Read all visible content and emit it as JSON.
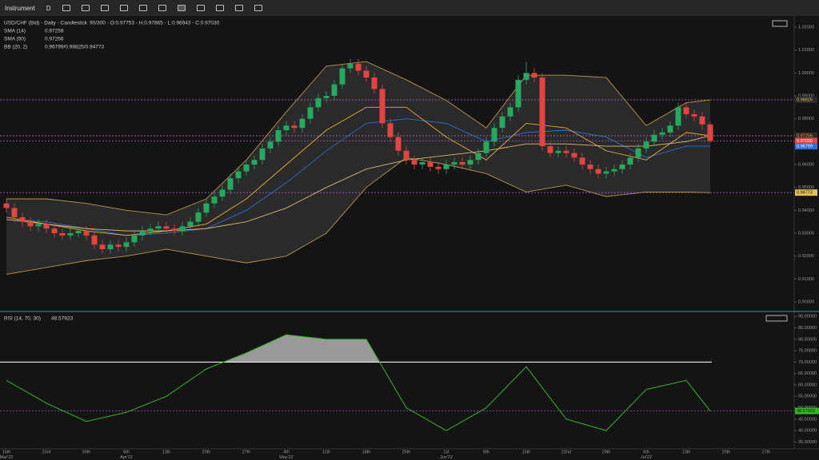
{
  "toolbar": {
    "instrument": "Instrument",
    "period": "D"
  },
  "price_chart": {
    "type": "candlestick",
    "title": "USD/CHF (Bid) - Daily - Candlestick",
    "ohlc_summary": "90/300 - O:0.97753 - H:0.97865 - L:0.96943 - C:0.97030",
    "indicators": [
      {
        "name": "SMA (14)",
        "value": 0.97258
      },
      {
        "name": "SMA (50)",
        "value": 0.97256
      },
      {
        "name": "BB (20, 2)",
        "value": "0.96799/0.98825/0.94773"
      }
    ],
    "ylim": [
      0.8958,
      1.0249
    ],
    "yticks": [
      {
        "value": 0.9,
        "label": "0.90000"
      },
      {
        "value": 0.91,
        "label": "0.91000"
      },
      {
        "value": 0.92,
        "label": "0.92000"
      },
      {
        "value": 0.93,
        "label": "0.93000"
      },
      {
        "value": 0.94,
        "label": "0.94000"
      },
      {
        "value": 0.95,
        "label": "0.95000"
      },
      {
        "value": 0.96,
        "label": "0.96000"
      },
      {
        "value": 0.97,
        "label": "0.97000"
      },
      {
        "value": 0.98,
        "label": "0.98000"
      },
      {
        "value": 0.99,
        "label": "0.99000"
      },
      {
        "value": 1.0,
        "label": "1.00000"
      },
      {
        "value": 1.01,
        "label": "1.01000"
      },
      {
        "value": 1.02,
        "label": "1.02000"
      }
    ],
    "up_color": "#27a85f",
    "down_color": "#e0453f",
    "candles": [
      [
        0.943,
        0.945,
        0.939,
        0.941
      ],
      [
        0.941,
        0.943,
        0.935,
        0.937
      ],
      [
        0.937,
        0.939,
        0.933,
        0.935
      ],
      [
        0.935,
        0.937,
        0.931,
        0.933
      ],
      [
        0.933,
        0.936,
        0.931,
        0.934
      ],
      [
        0.934,
        0.936,
        0.93,
        0.932
      ],
      [
        0.932,
        0.934,
        0.928,
        0.93
      ],
      [
        0.93,
        0.932,
        0.927,
        0.929
      ],
      [
        0.929,
        0.932,
        0.927,
        0.93
      ],
      [
        0.93,
        0.933,
        0.928,
        0.931
      ],
      [
        0.931,
        0.933,
        0.927,
        0.929
      ],
      [
        0.929,
        0.931,
        0.923,
        0.925
      ],
      [
        0.925,
        0.927,
        0.921,
        0.923
      ],
      [
        0.923,
        0.927,
        0.921,
        0.925
      ],
      [
        0.925,
        0.927,
        0.922,
        0.924
      ],
      [
        0.924,
        0.928,
        0.922,
        0.926
      ],
      [
        0.926,
        0.931,
        0.924,
        0.929
      ],
      [
        0.929,
        0.933,
        0.927,
        0.931
      ],
      [
        0.931,
        0.934,
        0.929,
        0.932
      ],
      [
        0.932,
        0.935,
        0.93,
        0.933
      ],
      [
        0.933,
        0.935,
        0.93,
        0.932
      ],
      [
        0.932,
        0.934,
        0.929,
        0.931
      ],
      [
        0.931,
        0.935,
        0.929,
        0.933
      ],
      [
        0.933,
        0.937,
        0.931,
        0.935
      ],
      [
        0.935,
        0.941,
        0.933,
        0.939
      ],
      [
        0.939,
        0.945,
        0.937,
        0.943
      ],
      [
        0.943,
        0.948,
        0.941,
        0.946
      ],
      [
        0.946,
        0.951,
        0.944,
        0.949
      ],
      [
        0.949,
        0.956,
        0.947,
        0.954
      ],
      [
        0.954,
        0.959,
        0.952,
        0.957
      ],
      [
        0.957,
        0.962,
        0.955,
        0.96
      ],
      [
        0.96,
        0.964,
        0.958,
        0.962
      ],
      [
        0.962,
        0.969,
        0.96,
        0.967
      ],
      [
        0.967,
        0.972,
        0.965,
        0.97
      ],
      [
        0.97,
        0.977,
        0.968,
        0.975
      ],
      [
        0.975,
        0.979,
        0.973,
        0.977
      ],
      [
        0.977,
        0.979,
        0.974,
        0.976
      ],
      [
        0.976,
        0.982,
        0.974,
        0.98
      ],
      [
        0.98,
        0.987,
        0.978,
        0.985
      ],
      [
        0.985,
        0.991,
        0.983,
        0.989
      ],
      [
        0.989,
        0.992,
        0.987,
        0.99
      ],
      [
        0.99,
        0.997,
        0.988,
        0.995
      ],
      [
        0.995,
        1.004,
        0.993,
        1.002
      ],
      [
        1.002,
        1.006,
        1.0,
        1.004
      ],
      [
        1.004,
        1.006,
        0.999,
        1.001
      ],
      [
        1.001,
        1.003,
        0.996,
        0.998
      ],
      [
        0.998,
        1.0,
        0.991,
        0.993
      ],
      [
        0.993,
        0.995,
        0.976,
        0.978
      ],
      [
        0.978,
        0.98,
        0.97,
        0.972
      ],
      [
        0.972,
        0.974,
        0.964,
        0.966
      ],
      [
        0.966,
        0.968,
        0.96,
        0.962
      ],
      [
        0.962,
        0.964,
        0.958,
        0.96
      ],
      [
        0.96,
        0.963,
        0.958,
        0.961
      ],
      [
        0.961,
        0.963,
        0.957,
        0.959
      ],
      [
        0.959,
        0.961,
        0.956,
        0.958
      ],
      [
        0.958,
        0.962,
        0.956,
        0.96
      ],
      [
        0.96,
        0.963,
        0.958,
        0.961
      ],
      [
        0.961,
        0.963,
        0.958,
        0.96
      ],
      [
        0.96,
        0.964,
        0.958,
        0.962
      ],
      [
        0.962,
        0.967,
        0.96,
        0.965
      ],
      [
        0.965,
        0.972,
        0.963,
        0.97
      ],
      [
        0.97,
        0.978,
        0.968,
        0.976
      ],
      [
        0.976,
        0.983,
        0.974,
        0.981
      ],
      [
        0.981,
        0.987,
        0.979,
        0.985
      ],
      [
        0.985,
        0.999,
        0.983,
        0.997
      ],
      [
        0.997,
        1.005,
        0.995,
        1.0
      ],
      [
        1.0,
        1.002,
        0.996,
        0.998
      ],
      [
        0.998,
        1.0,
        0.966,
        0.968
      ],
      [
        0.968,
        0.97,
        0.963,
        0.965
      ],
      [
        0.965,
        0.968,
        0.963,
        0.966
      ],
      [
        0.966,
        0.968,
        0.963,
        0.965
      ],
      [
        0.965,
        0.967,
        0.961,
        0.963
      ],
      [
        0.963,
        0.965,
        0.958,
        0.96
      ],
      [
        0.96,
        0.962,
        0.956,
        0.958
      ],
      [
        0.958,
        0.96,
        0.954,
        0.956
      ],
      [
        0.956,
        0.959,
        0.954,
        0.957
      ],
      [
        0.957,
        0.96,
        0.955,
        0.958
      ],
      [
        0.958,
        0.962,
        0.956,
        0.96
      ],
      [
        0.96,
        0.965,
        0.958,
        0.963
      ],
      [
        0.963,
        0.969,
        0.961,
        0.967
      ],
      [
        0.967,
        0.972,
        0.965,
        0.97
      ],
      [
        0.97,
        0.975,
        0.968,
        0.973
      ],
      [
        0.973,
        0.976,
        0.971,
        0.974
      ],
      [
        0.974,
        0.979,
        0.972,
        0.977
      ],
      [
        0.977,
        0.987,
        0.975,
        0.985
      ],
      [
        0.985,
        0.987,
        0.98,
        0.982
      ],
      [
        0.982,
        0.984,
        0.979,
        0.981
      ],
      [
        0.981,
        0.983,
        0.975,
        0.97753
      ],
      [
        0.97753,
        0.97865,
        0.96943,
        0.9703
      ]
    ],
    "lines_x": [
      0,
      5,
      10,
      15,
      20,
      25,
      30,
      35,
      40,
      45,
      50,
      55,
      60,
      65,
      70,
      75,
      80,
      85,
      88
    ],
    "bb_upper": [
      0.945,
      0.945,
      0.943,
      0.94,
      0.938,
      0.945,
      0.962,
      0.983,
      1.003,
      1.005,
      0.997,
      0.988,
      0.976,
      0.999,
      0.999,
      0.998,
      0.977,
      0.987,
      0.98825
    ],
    "bb_mid": [
      0.936,
      0.935,
      0.932,
      0.929,
      0.93,
      0.932,
      0.94,
      0.952,
      0.966,
      0.978,
      0.98,
      0.978,
      0.97,
      0.974,
      0.975,
      0.972,
      0.963,
      0.968,
      0.96799
    ],
    "bb_lower": [
      0.912,
      0.915,
      0.918,
      0.92,
      0.923,
      0.92,
      0.917,
      0.92,
      0.93,
      0.95,
      0.963,
      0.96,
      0.956,
      0.948,
      0.951,
      0.946,
      0.948,
      0.948,
      0.94773
    ],
    "sma14": [
      0.937,
      0.934,
      0.931,
      0.929,
      0.931,
      0.934,
      0.945,
      0.96,
      0.975,
      0.985,
      0.985,
      0.972,
      0.962,
      0.978,
      0.976,
      0.966,
      0.962,
      0.974,
      0.97258
    ],
    "sma50": [
      0.936,
      0.934,
      0.932,
      0.931,
      0.931,
      0.932,
      0.935,
      0.941,
      0.95,
      0.958,
      0.962,
      0.964,
      0.966,
      0.969,
      0.969,
      0.968,
      0.968,
      0.97,
      0.97256
    ],
    "markers": [
      {
        "value": 0.98825,
        "color": "#e3c05a",
        "bg": "#2a2a2a",
        "line": true
      },
      {
        "value": 0.97258,
        "color": "#111111",
        "bg": "#e8a93a",
        "line": true
      },
      {
        "value": 0.97256,
        "color": "#e8a93a",
        "bg": "#2a2a2a",
        "line": true
      },
      {
        "value": 0.9703,
        "label": "0.97030",
        "color": "#ffffff",
        "bg": "#e0453f",
        "line": true
      },
      {
        "value": 0.96799,
        "color": "#ffffff",
        "bg": "#2f6fd0",
        "line": false
      },
      {
        "value": 0.94773,
        "color": "#111111",
        "bg": "#e3c05a",
        "line": true
      }
    ]
  },
  "rsi_chart": {
    "type": "line",
    "title": "RSI (14, 70, 30)",
    "ylim": [
      32,
      91.5
    ],
    "yticks": [
      {
        "value": 35,
        "label": "35.00000"
      },
      {
        "value": 40,
        "label": "40.00000"
      },
      {
        "value": 45,
        "label": "45.00000"
      },
      {
        "value": 50,
        "label": "50.00000"
      },
      {
        "value": 55,
        "label": "55.00000"
      },
      {
        "value": 60,
        "label": "60.00000"
      },
      {
        "value": 65,
        "label": "65.00000"
      },
      {
        "value": 70,
        "label": "70.00000"
      },
      {
        "value": 75,
        "label": "75.00000"
      },
      {
        "value": 80,
        "label": "80.00000"
      },
      {
        "value": 85,
        "label": "85.00000"
      },
      {
        "value": 90,
        "label": "90.00000"
      }
    ],
    "level": 70,
    "color": "#35b526",
    "x": [
      0,
      5,
      10,
      15,
      20,
      25,
      30,
      35,
      40,
      45,
      50,
      55,
      60,
      65,
      70,
      75,
      80,
      85,
      88
    ],
    "values": [
      62,
      52,
      44,
      48,
      55,
      67,
      74,
      82,
      80,
      80,
      50,
      40,
      50,
      68,
      45,
      40,
      58,
      62,
      48.57923
    ]
  },
  "x_axis": [
    {
      "index": 0,
      "day": "16th",
      "month": "Mar'22"
    },
    {
      "index": 5,
      "day": "23rd"
    },
    {
      "index": 10,
      "day": "30th"
    },
    {
      "index": 15,
      "day": "6th",
      "month": "Apr'22"
    },
    {
      "index": 20,
      "day": "13th"
    },
    {
      "index": 25,
      "day": "20th"
    },
    {
      "index": 30,
      "day": "27th"
    },
    {
      "index": 35,
      "day": "4th",
      "month": "May'22"
    },
    {
      "index": 40,
      "day": "11th"
    },
    {
      "index": 45,
      "day": "18th"
    },
    {
      "index": 50,
      "day": "25th"
    },
    {
      "index": 55,
      "day": "1st",
      "month": "Jun'22"
    },
    {
      "index": 60,
      "day": "8th"
    },
    {
      "index": 65,
      "day": "15th"
    },
    {
      "index": 70,
      "day": "22nd"
    },
    {
      "index": 75,
      "day": "29th"
    },
    {
      "index": 80,
      "day": "6th",
      "month": "Jul'22"
    },
    {
      "index": 85,
      "day": "13th"
    },
    {
      "index": 90,
      "day": "20th"
    },
    {
      "index": 95,
      "day": "27th"
    }
  ]
}
